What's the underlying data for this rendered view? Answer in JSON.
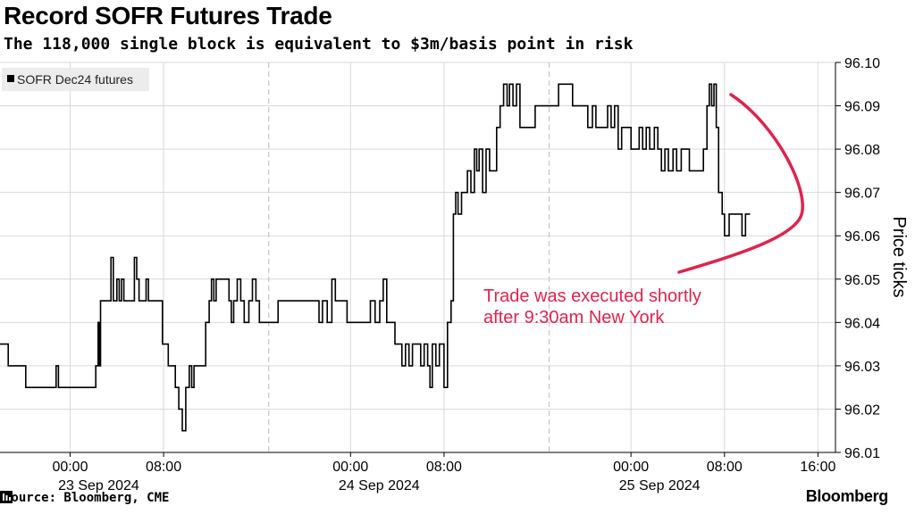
{
  "title": "Record SOFR Futures Trade",
  "subtitle": "The 118,000 single block is equivalent to $3m/basis point in risk",
  "footer": {
    "source": "Source: Bloomberg, CME",
    "brand": "Bloomberg",
    "brand_icon": "bloomberg-terminal-icon"
  },
  "colors": {
    "series": "#000000",
    "annotation": "#e0234e",
    "grid": "#d9d9d9"
  },
  "chart_data": {
    "type": "line",
    "ylabel": "Price ticks",
    "ylim": [
      96.01,
      96.1
    ],
    "y_ticks": [
      "96.01",
      "96.02",
      "96.03",
      "96.04",
      "96.05",
      "96.06",
      "96.07",
      "96.08",
      "96.09",
      "96.10"
    ],
    "x_ticks": [
      {
        "hour": 0,
        "label": "00:00",
        "date": "23 Sep 2024"
      },
      {
        "hour": 8,
        "label": "08:00"
      },
      {
        "hour": 24,
        "label": "00:00",
        "date": "24 Sep 2024"
      },
      {
        "hour": 32,
        "label": "08:00"
      },
      {
        "hour": 48,
        "label": "00:00",
        "date": "25 Sep 2024"
      },
      {
        "hour": 56,
        "label": "08:00"
      },
      {
        "hour": 64,
        "label": "16:00"
      }
    ],
    "xlim": [
      -6,
      65.5
    ],
    "session_breaks": [
      17,
      41
    ],
    "grid": true,
    "legend_position": "top-left",
    "annotation": "Trade was executed shortly\nafter 9:30am New York",
    "series": [
      {
        "name": "SOFR Dec24 futures",
        "points": [
          [
            -6,
            96.035
          ],
          [
            -5.5,
            96.035
          ],
          [
            -5.3,
            96.03
          ],
          [
            -4.2,
            96.03
          ],
          [
            -3.8,
            96.025
          ],
          [
            -1.3,
            96.025
          ],
          [
            -1.2,
            96.03
          ],
          [
            -1.0,
            96.025
          ],
          [
            2.0,
            96.025
          ],
          [
            2.2,
            96.03
          ],
          [
            2.4,
            96.04
          ],
          [
            2.5,
            96.03
          ],
          [
            2.6,
            96.045
          ],
          [
            3.3,
            96.045
          ],
          [
            3.5,
            96.055
          ],
          [
            3.7,
            96.045
          ],
          [
            4.0,
            96.05
          ],
          [
            4.2,
            96.045
          ],
          [
            4.4,
            96.05
          ],
          [
            4.6,
            96.045
          ],
          [
            5.3,
            96.045
          ],
          [
            5.5,
            96.055
          ],
          [
            5.7,
            96.05
          ],
          [
            5.9,
            96.045
          ],
          [
            6.3,
            96.045
          ],
          [
            6.5,
            96.05
          ],
          [
            6.7,
            96.045
          ],
          [
            7.7,
            96.045
          ],
          [
            7.9,
            96.035
          ],
          [
            8.2,
            96.035
          ],
          [
            8.4,
            96.03
          ],
          [
            8.8,
            96.03
          ],
          [
            9.0,
            96.025
          ],
          [
            9.3,
            96.02
          ],
          [
            9.6,
            96.015
          ],
          [
            9.9,
            96.025
          ],
          [
            10.2,
            96.03
          ],
          [
            10.4,
            96.025
          ],
          [
            10.6,
            96.03
          ],
          [
            11.4,
            96.03
          ],
          [
            11.6,
            96.04
          ],
          [
            11.9,
            96.045
          ],
          [
            12.1,
            96.05
          ],
          [
            12.3,
            96.045
          ],
          [
            12.5,
            96.05
          ],
          [
            13.4,
            96.05
          ],
          [
            13.6,
            96.045
          ],
          [
            13.8,
            96.04
          ],
          [
            14.0,
            96.045
          ],
          [
            14.3,
            96.05
          ],
          [
            14.6,
            96.045
          ],
          [
            14.9,
            96.04
          ],
          [
            15.3,
            96.045
          ],
          [
            15.6,
            96.05
          ],
          [
            15.9,
            96.045
          ],
          [
            16.2,
            96.04
          ],
          [
            17.5,
            96.04
          ],
          [
            17.8,
            96.045
          ],
          [
            21.0,
            96.045
          ],
          [
            21.3,
            96.04
          ],
          [
            21.6,
            96.045
          ],
          [
            22.0,
            96.04
          ],
          [
            22.4,
            96.05
          ],
          [
            22.7,
            96.045
          ],
          [
            23.4,
            96.045
          ],
          [
            23.7,
            96.04
          ],
          [
            25.4,
            96.04
          ],
          [
            25.7,
            96.045
          ],
          [
            26.1,
            96.04
          ],
          [
            26.5,
            96.045
          ],
          [
            26.8,
            96.05
          ],
          [
            27.1,
            96.04
          ],
          [
            27.5,
            96.04
          ],
          [
            27.8,
            96.035
          ],
          [
            28.2,
            96.035
          ],
          [
            28.4,
            96.03
          ],
          [
            28.7,
            96.035
          ],
          [
            29.0,
            96.03
          ],
          [
            29.3,
            96.035
          ],
          [
            29.8,
            96.035
          ],
          [
            30.0,
            96.03
          ],
          [
            30.3,
            96.035
          ],
          [
            30.6,
            96.03
          ],
          [
            30.8,
            96.025
          ],
          [
            31.0,
            96.035
          ],
          [
            31.3,
            96.03
          ],
          [
            31.6,
            96.035
          ],
          [
            32.0,
            96.025
          ],
          [
            32.3,
            96.04
          ],
          [
            32.6,
            96.045
          ],
          [
            32.8,
            96.065
          ],
          [
            33.0,
            96.07
          ],
          [
            33.2,
            96.065
          ],
          [
            33.5,
            96.07
          ],
          [
            33.8,
            96.07
          ],
          [
            34.0,
            96.075
          ],
          [
            34.3,
            96.07
          ],
          [
            34.6,
            96.08
          ],
          [
            34.8,
            96.075
          ],
          [
            35.0,
            96.08
          ],
          [
            35.3,
            96.07
          ],
          [
            35.6,
            96.08
          ],
          [
            35.9,
            96.075
          ],
          [
            36.2,
            96.075
          ],
          [
            36.5,
            96.085
          ],
          [
            36.8,
            96.09
          ],
          [
            37.1,
            96.095
          ],
          [
            37.4,
            96.09
          ],
          [
            37.6,
            96.095
          ],
          [
            37.9,
            96.09
          ],
          [
            38.2,
            96.095
          ],
          [
            38.5,
            96.085
          ],
          [
            39.8,
            96.09
          ],
          [
            41.5,
            96.09
          ],
          [
            41.8,
            96.095
          ],
          [
            42.7,
            96.095
          ],
          [
            43.0,
            96.09
          ],
          [
            44.0,
            96.09
          ],
          [
            44.3,
            96.085
          ],
          [
            44.7,
            96.09
          ],
          [
            45.0,
            96.085
          ],
          [
            45.8,
            96.085
          ],
          [
            46.0,
            96.09
          ],
          [
            46.3,
            96.085
          ],
          [
            46.6,
            96.09
          ],
          [
            46.9,
            96.08
          ],
          [
            47.2,
            96.085
          ],
          [
            47.6,
            96.085
          ],
          [
            48.0,
            96.08
          ],
          [
            48.4,
            96.08
          ],
          [
            48.7,
            96.085
          ],
          [
            49.0,
            96.08
          ],
          [
            49.3,
            96.085
          ],
          [
            49.6,
            96.08
          ],
          [
            50.0,
            96.085
          ],
          [
            50.3,
            96.08
          ],
          [
            50.6,
            96.075
          ],
          [
            50.9,
            96.08
          ],
          [
            51.2,
            96.075
          ],
          [
            51.6,
            96.08
          ],
          [
            51.9,
            96.075
          ],
          [
            52.3,
            96.08
          ],
          [
            52.8,
            96.08
          ],
          [
            53.0,
            96.075
          ],
          [
            54.0,
            96.075
          ],
          [
            54.2,
            96.08
          ],
          [
            54.5,
            96.09
          ],
          [
            54.7,
            96.095
          ],
          [
            54.9,
            96.09
          ],
          [
            55.1,
            96.095
          ],
          [
            55.3,
            96.085
          ],
          [
            55.5,
            96.07
          ],
          [
            55.8,
            96.065
          ],
          [
            56.0,
            96.06
          ],
          [
            56.4,
            96.065
          ],
          [
            57.3,
            96.065
          ],
          [
            57.5,
            96.06
          ],
          [
            57.8,
            96.065
          ],
          [
            58.2,
            96.065
          ]
        ]
      }
    ]
  }
}
